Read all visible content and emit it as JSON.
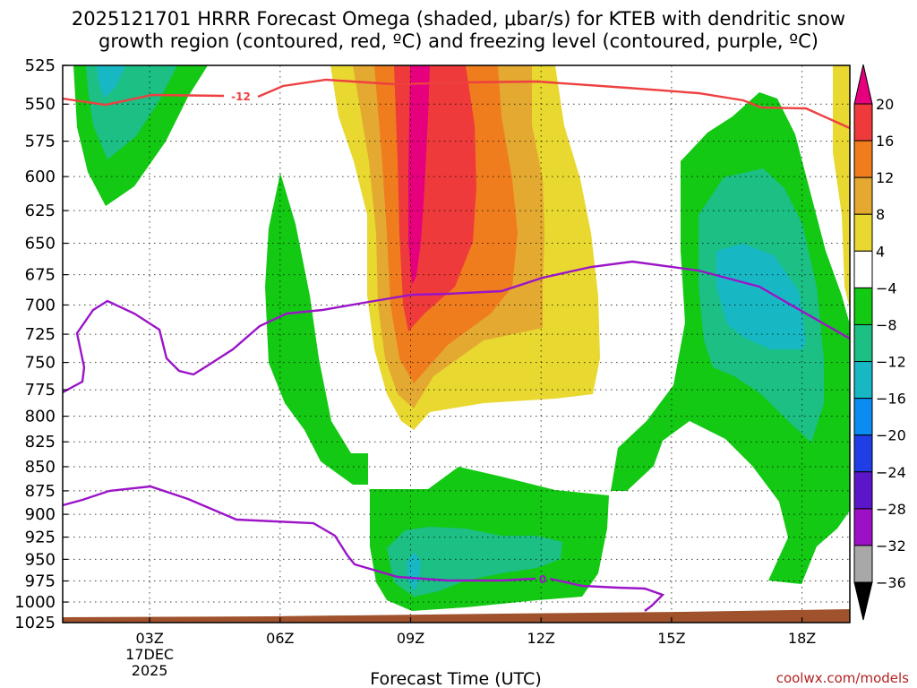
{
  "chart_data": {
    "type": "heatmap",
    "title": "2025121701 HRRR Forecast Omega (shaded, μbar/s) for KTEB with dendritic snow",
    "title2": "growth region (contoured, red, ºC) and freezing level (contoured, purple, ºC)",
    "xlabel": "Forecast Time (UTC)",
    "credit": "coolwx.com/models",
    "x_ticks": [
      {
        "t": 3,
        "label": "03Z",
        "sub1": "17DEC",
        "sub2": "2025"
      },
      {
        "t": 6,
        "label": "06Z"
      },
      {
        "t": 9,
        "label": "09Z"
      },
      {
        "t": 12,
        "label": "12Z"
      },
      {
        "t": 15,
        "label": "15Z"
      },
      {
        "t": 18,
        "label": "18Z"
      }
    ],
    "xlim": [
      1.0,
      19.1
    ],
    "y_ticks": [
      525,
      550,
      575,
      600,
      625,
      650,
      675,
      700,
      725,
      750,
      775,
      800,
      825,
      850,
      875,
      900,
      925,
      950,
      975,
      1000,
      1025
    ],
    "ylim": [
      525,
      1025
    ],
    "y_scale": "log-pressure",
    "colorbar": {
      "labels": [
        "20",
        "16",
        "12",
        "8",
        "4",
        "−4",
        "−8",
        "−12",
        "−16",
        "−20",
        "−24",
        "−28",
        "−32",
        "−36"
      ],
      "colors": [
        "#e6007e",
        "#ee3a3a",
        "#ef7d1e",
        "#e3a930",
        "#e8d830",
        "#ffffff",
        "#13c913",
        "#1cbf84",
        "#17b8c4",
        "#0a8cf0",
        "#1f3ee6",
        "#5a16c8",
        "#9c10c6",
        "#a8a8a8"
      ],
      "top_arrow": "#e6007e",
      "bottom_arrow": "#000000"
    },
    "contour_labels": {
      "dgz": "-12",
      "freezing": "0"
    },
    "colors": {
      "dgz": "#ee4040",
      "freezing": "#9b14c8",
      "terrain": "#a0522d"
    },
    "grid": "dotted"
  }
}
